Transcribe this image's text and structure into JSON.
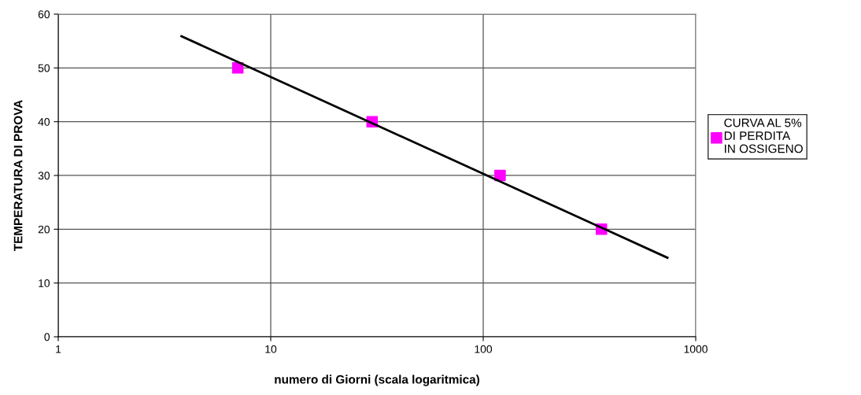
{
  "chart_data": {
    "type": "scatter",
    "xlabel": "numero di Giorni (scala logaritmica)",
    "ylabel": "TEMPERATURA DI PROVA",
    "log": "x",
    "xlim": [
      1,
      1000
    ],
    "xticks": [
      1,
      10,
      100,
      1000
    ],
    "ylim": [
      0,
      60
    ],
    "yticks": [
      0,
      10,
      20,
      30,
      40,
      50,
      60
    ],
    "grid": true,
    "legend": "right",
    "series": [
      {
        "name": "CURVA AL 5%\nDI PERDITA\nIN OSSIGENO",
        "color": "#ff00ff",
        "marker": "square",
        "x": [
          7,
          30,
          120,
          360
        ],
        "values": [
          50,
          40,
          30,
          20
        ]
      },
      {
        "type": "line",
        "color": "#000000",
        "x": [
          3.8,
          736
        ],
        "values": [
          55.9,
          14.7
        ],
        "marker": "none",
        "line_style": "solid"
      }
    ]
  }
}
